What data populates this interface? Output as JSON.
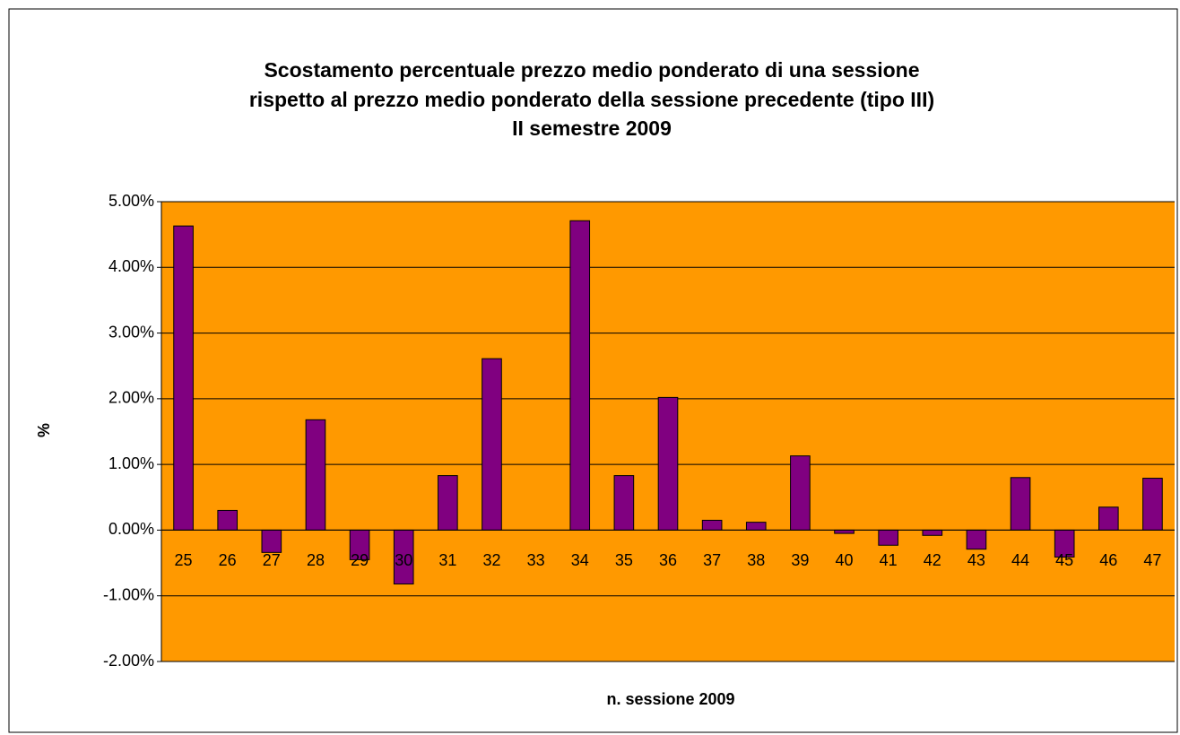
{
  "chart_data": {
    "type": "bar",
    "title": [
      "Scostamento percentuale prezzo medio ponderato di una sessione",
      "rispetto al prezzo medio ponderato della sessione precedente (tipo III)",
      "II semestre 2009"
    ],
    "y_label": "%",
    "x_label": "n. sessione 2009",
    "categories": [
      "25",
      "26",
      "27",
      "28",
      "29",
      "30",
      "31",
      "32",
      "33",
      "34",
      "35",
      "36",
      "37",
      "38",
      "39",
      "40",
      "41",
      "42",
      "43",
      "44",
      "45",
      "46",
      "47"
    ],
    "values": [
      4.63,
      0.3,
      -0.34,
      1.68,
      -0.45,
      -0.82,
      0.83,
      2.61,
      0,
      4.71,
      0.83,
      2.02,
      0.15,
      0.12,
      1.13,
      -0.05,
      -0.23,
      -0.08,
      -0.29,
      0.8,
      -0.41,
      0.35,
      0.79
    ],
    "color": "#800080",
    "background": "#FF9900",
    "ylim": [
      -2,
      5
    ],
    "yticks": [
      {
        "value": -2,
        "label": "-2.00%"
      },
      {
        "value": -1,
        "label": "-1.00%"
      },
      {
        "value": 0,
        "label": "0.00%"
      },
      {
        "value": 1,
        "label": "1.00%"
      },
      {
        "value": 2,
        "label": "2.00%"
      },
      {
        "value": 3,
        "label": "3.00%"
      },
      {
        "value": 4,
        "label": "4.00%"
      },
      {
        "value": 5,
        "label": "5.00%"
      }
    ],
    "grid": true
  }
}
